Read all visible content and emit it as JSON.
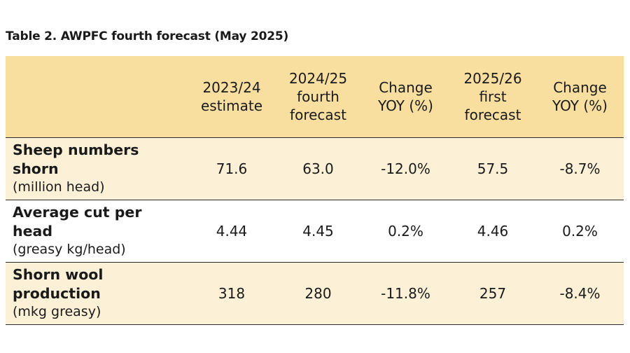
{
  "caption": "Table 2. AWPFC fourth forecast (May 2025)",
  "columns": [
    "",
    "2023/24\nestimate",
    "2024/25\nfourth\nforecast",
    "Change\nYOY (%)",
    "2025/26\nfirst\nforecast",
    "Change\nYOY (%)"
  ],
  "rows": [
    {
      "metric": "Sheep numbers shorn",
      "unit": "(million head)",
      "values": [
        "71.6",
        "63.0",
        "-12.0%",
        "57.5",
        "-8.7%"
      ]
    },
    {
      "metric": "Average cut per head",
      "unit": "(greasy kg/head)",
      "values": [
        "4.44",
        "4.45",
        "0.2%",
        "4.46",
        "0.2%"
      ]
    },
    {
      "metric": "Shorn wool production",
      "unit": "(mkg greasy)",
      "values": [
        "318",
        "280",
        "-11.8%",
        "257",
        "-8.4%"
      ]
    }
  ],
  "colors": {
    "header_bg": "#f8dfa0",
    "row_shaded_bg": "#fcf1d7",
    "row_plain_bg": "#ffffff",
    "rule": "#2a2a2a"
  }
}
